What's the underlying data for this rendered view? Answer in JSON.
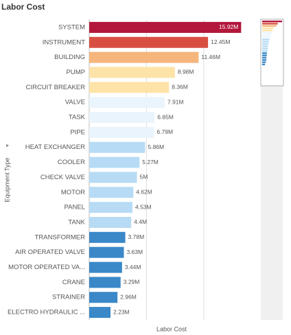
{
  "chart_data": {
    "type": "bar",
    "orientation": "horizontal",
    "title": "Labor Cost",
    "y_label": "Equipment Type",
    "x_label": "Labor Cost",
    "categories": [
      "SYSTEM",
      "INSTRUMENT",
      "BUILDING",
      "PUMP",
      "CIRCUIT BREAKER",
      "VALVE",
      "TASK",
      "PIPE",
      "HEAT EXCHANGER",
      "COOLER",
      "CHECK VALVE",
      "MOTOR",
      "PANEL",
      "TANK",
      "TRANSFORMER",
      "AIR OPERATED VALVE",
      "MOTOR OPERATED VA...",
      "CRANE",
      "STRAINER",
      "ELECTRO HYDRAULIC ..."
    ],
    "values": [
      15.92,
      12.45,
      11.46,
      8.98,
      8.36,
      7.91,
      6.85,
      6.79,
      5.86,
      5.27,
      5,
      4.62,
      4.53,
      4.4,
      3.78,
      3.63,
      3.44,
      3.29,
      2.96,
      2.23
    ],
    "value_labels": [
      "15.92M",
      "12.45M",
      "11.46M",
      "8.98M",
      "8.36M",
      "7.91M",
      "6.85M",
      "6.79M",
      "5.86M",
      "5.27M",
      "5M",
      "4.62M",
      "4.53M",
      "4.4M",
      "3.78M",
      "3.63M",
      "3.44M",
      "3.29M",
      "2.96M",
      "2.23M"
    ],
    "colors": [
      "#b3173b",
      "#d84f42",
      "#f5b57b",
      "#fde3a8",
      "#fde3a8",
      "#eaf4fc",
      "#eaf4fc",
      "#eaf4fc",
      "#b7dbf4",
      "#b7dbf4",
      "#b7dbf4",
      "#b7dbf4",
      "#b7dbf4",
      "#b7dbf4",
      "#3a88c8",
      "#3a88c8",
      "#3a88c8",
      "#3a88c8",
      "#3a88c8",
      "#3a88c8"
    ],
    "xlim": [
      0,
      16.9
    ],
    "xgrid": [
      6,
      12
    ],
    "grid": true
  }
}
